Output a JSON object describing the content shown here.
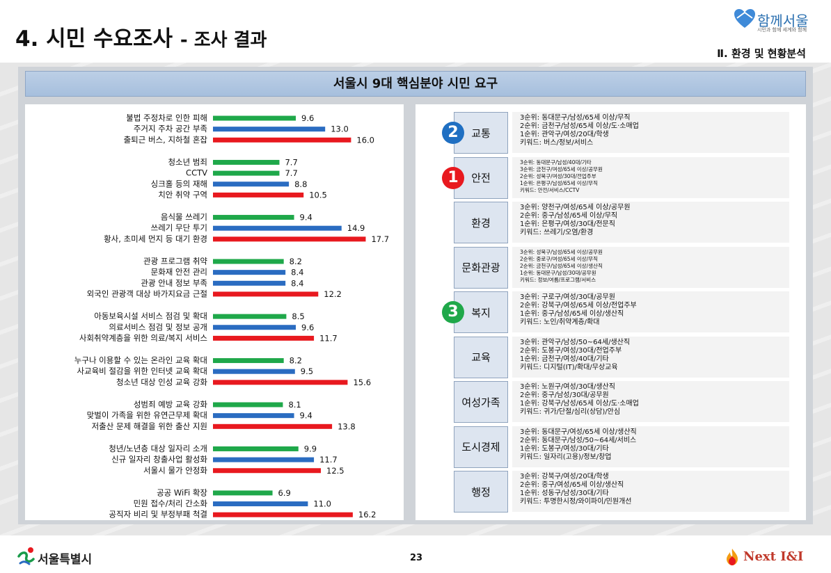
{
  "header": {
    "title_main": "4. 시민 수요조사",
    "title_sub": "- 조사 결과",
    "logo_name": "함께서울",
    "logo_slogan": "시민과 함께 세계와 함께",
    "section_label": "Ⅱ. 환경 및 현황분석"
  },
  "colors": {
    "green": "#1fa84a",
    "blue": "#2a6cc1",
    "red": "#e8191f",
    "header_bg": "#a6bfdd",
    "cat_box_bg": "#dde5f0"
  },
  "chart_data": {
    "type": "bar",
    "orientation": "horizontal",
    "title": "서울시 9대 핵심분야 시민 요구",
    "xlim": [
      0,
      18
    ],
    "grid": false,
    "groups": [
      {
        "items": [
          {
            "label": "불법 주정차로 인한 피해",
            "value": 9.6,
            "value_label": "9.6",
            "color": "green"
          },
          {
            "label": "주거지 주차 공간 부족",
            "value": 13.0,
            "value_label": "13.0",
            "color": "blue"
          },
          {
            "label": "출퇴근 버스, 지하철 혼잡",
            "value": 16.0,
            "value_label": "16.0",
            "color": "red"
          }
        ]
      },
      {
        "items": [
          {
            "label": "청소년 범죄",
            "value": 7.7,
            "value_label": "7.7",
            "color": "green"
          },
          {
            "label": "CCTV",
            "value": 7.7,
            "value_label": "7.7",
            "color": "green"
          },
          {
            "label": "싱크홀 등의 재해",
            "value": 8.8,
            "value_label": "8.8",
            "color": "blue"
          },
          {
            "label": "치안 취약 구역",
            "value": 10.5,
            "value_label": "10.5",
            "color": "red"
          }
        ]
      },
      {
        "items": [
          {
            "label": "음식물 쓰레기",
            "value": 9.4,
            "value_label": "9.4",
            "color": "green"
          },
          {
            "label": "쓰레기 무단 투기",
            "value": 14.9,
            "value_label": "14.9",
            "color": "blue"
          },
          {
            "label": "황사, 초미세 먼지 등 대기 환경",
            "value": 17.7,
            "value_label": "17.7",
            "color": "red"
          }
        ]
      },
      {
        "items": [
          {
            "label": "관광 프로그램 취약",
            "value": 8.2,
            "value_label": "8.2",
            "color": "green"
          },
          {
            "label": "문화재 안전 관리",
            "value": 8.4,
            "value_label": "8.4",
            "color": "blue"
          },
          {
            "label": "관광 안내 정보 부족",
            "value": 8.4,
            "value_label": "8.4",
            "color": "blue"
          },
          {
            "label": "외국인 관광객 대상 바가지요금 근절",
            "value": 12.2,
            "value_label": "12.2",
            "color": "red"
          }
        ]
      },
      {
        "items": [
          {
            "label": "아동보육시설 서비스 점검 및 확대",
            "value": 8.5,
            "value_label": "8.5",
            "color": "green"
          },
          {
            "label": "의료서비스 점검 및 정보 공개",
            "value": 9.6,
            "value_label": "9.6",
            "color": "blue"
          },
          {
            "label": "사회취약계층을 위한 의료/복지 서비스",
            "value": 11.7,
            "value_label": "11.7",
            "color": "red"
          }
        ]
      },
      {
        "items": [
          {
            "label": "누구나 이용할 수 있는 온라인 교육 확대",
            "value": 8.2,
            "value_label": "8.2",
            "color": "green"
          },
          {
            "label": "사교육비 절감을 위한 인터넷 교육 확대",
            "value": 9.5,
            "value_label": "9.5",
            "color": "blue"
          },
          {
            "label": "청소년 대상 인성 교육 강화",
            "value": 15.6,
            "value_label": "15.6",
            "color": "red"
          }
        ]
      },
      {
        "items": [
          {
            "label": "성범죄 예방 교육 강화",
            "value": 8.1,
            "value_label": "8.1",
            "color": "green"
          },
          {
            "label": "맞벌이 가족을 위한 유연근무제 확대",
            "value": 9.4,
            "value_label": "9.4",
            "color": "blue"
          },
          {
            "label": "저출산 문제 해결을 위한 출산 지원",
            "value": 13.8,
            "value_label": "13.8",
            "color": "red"
          }
        ]
      },
      {
        "items": [
          {
            "label": "청년/노년층 대상 일자리 소개",
            "value": 9.9,
            "value_label": "9.9",
            "color": "green"
          },
          {
            "label": "신규 일자리 창출사업 활성화",
            "value": 11.7,
            "value_label": "11.7",
            "color": "blue"
          },
          {
            "label": "서울시 물가 안정화",
            "value": 12.5,
            "value_label": "12.5",
            "color": "red"
          }
        ]
      },
      {
        "items": [
          {
            "label": "공공 WiFi 확장",
            "value": 6.9,
            "value_label": "6.9",
            "color": "green"
          },
          {
            "label": "민원 접수/처리 간소화",
            "value": 11.0,
            "value_label": "11.0",
            "color": "blue"
          },
          {
            "label": "공직자 비리 및 부정부패 척결",
            "value": 16.2,
            "value_label": "16.2",
            "color": "red"
          }
        ]
      }
    ]
  },
  "categories": [
    {
      "name": "교통",
      "rank_badge": "2",
      "badge_color": "#1f6fc2",
      "small": false,
      "lines": [
        "3순위: 동대문구/남성/65세 이상/무직",
        "2순위: 금천구/남성/65세 이상/도·소매업",
        "1순위: 관악구/여성/20대/학생",
        "키워드: 버스/정보/서비스"
      ]
    },
    {
      "name": "안전",
      "rank_badge": "1",
      "badge_color": "#e8191f",
      "small": true,
      "lines": [
        "3순위: 동대문구/남성/40대/기타",
        "3순위: 금천구/여성/65세 이상/공무원",
        "2순위: 성북구/여성/30대/전업주부",
        "1순위: 은평구/남성/65세 이상/무직",
        "키워드: 안전/서비스/CCTV"
      ]
    },
    {
      "name": "환경",
      "rank_badge": "",
      "badge_color": "",
      "small": false,
      "lines": [
        "3순위: 양천구/여성/65세 이상/공무원",
        "2순위: 중구/남성/65세 이상/무직",
        "1순위: 은평구/여성/30대/전문직",
        "키워드: 쓰레기/오염/환경"
      ]
    },
    {
      "name": "문화관광",
      "rank_badge": "",
      "badge_color": "",
      "small": true,
      "lines": [
        "3순위: 성북구/남성/65세 이상/공무원",
        "2순위: 중로구/여성/65세 이상/무직",
        "2순위: 금천구/남성/65세 이상/생산직",
        "1순위: 동대문구/남성/30대/공무원",
        "키워드: 정보/여름/프로그램/서비스"
      ]
    },
    {
      "name": "복지",
      "rank_badge": "3",
      "badge_color": "#1fa84a",
      "small": false,
      "lines": [
        "3순위: 구로구/여성/30대/공무원",
        "2순위: 강북구/여성/65세 이상/전업주부",
        "1순위: 중구/남성/65세 이상/생산직",
        "키워드: 노인/취약계층/확대"
      ]
    },
    {
      "name": "교육",
      "rank_badge": "",
      "badge_color": "",
      "small": false,
      "lines": [
        "3순위: 관악구/남성/50~64세/생산직",
        "2순위: 도봉구/여성/30대/전업주부",
        "1순위: 금천구/여성/40대/기타",
        "키워드: 디지털(IT)/확대/무상교육"
      ]
    },
    {
      "name": "여성가족",
      "rank_badge": "",
      "badge_color": "",
      "small": false,
      "lines": [
        "3순위: 노원구/여성/30대/생산직",
        "2순위: 중구/남성/30대/공무원",
        "1순위: 강북구/남성/65세 이상/도·소매업",
        "키워드: 귀가/단절/심리(상담)/안심"
      ]
    },
    {
      "name": "도시경제",
      "rank_badge": "",
      "badge_color": "",
      "small": false,
      "lines": [
        "3순위: 동대문구/여성/65세 이상/생산직",
        "2순위: 동대문구/남성/50~64세/서비스",
        "1순위: 도봉구/여성/30대/기타",
        "키워드: 일자리(고용)/정보/창업"
      ]
    },
    {
      "name": "행정",
      "rank_badge": "",
      "badge_color": "",
      "small": false,
      "lines": [
        "3순위: 강북구/여성/20대/학생",
        "2순위: 중구/여성/65세 이상/생산직",
        "1순위: 성동구/남성/30대/기타",
        "키워드: 투명한시정/와이파이/민원개선"
      ]
    }
  ],
  "footer": {
    "left_logo": "서울특별시",
    "page_number": "23",
    "right_brand": "Next I&I"
  }
}
